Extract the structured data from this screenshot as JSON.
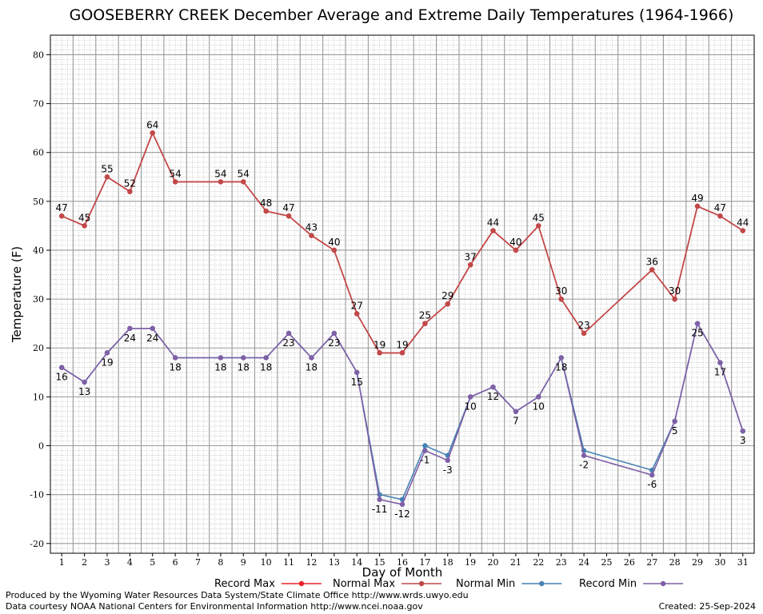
{
  "chart_data": {
    "type": "line",
    "title": "GOOSEBERRY CREEK December Average and Extreme Daily Temperatures (1964-1966)",
    "xlabel": "Day of Month",
    "ylabel": "Temperature (F)",
    "xlim": [
      0.5,
      31.5
    ],
    "ylim": [
      -22,
      84
    ],
    "y_ticks": [
      -20,
      -10,
      0,
      10,
      20,
      30,
      40,
      50,
      60,
      70,
      80
    ],
    "x": [
      1,
      2,
      3,
      4,
      5,
      6,
      7,
      8,
      9,
      10,
      11,
      12,
      13,
      14,
      15,
      16,
      17,
      18,
      19,
      20,
      21,
      22,
      23,
      24,
      25,
      26,
      27,
      28,
      29,
      30,
      31
    ],
    "grid": true,
    "legend_position": "bottom",
    "series": [
      {
        "name": "Record Max",
        "color": "#e8202a",
        "values": [
          47,
          45,
          55,
          52,
          64,
          54,
          null,
          54,
          54,
          48,
          47,
          43,
          40,
          27,
          19,
          19,
          25,
          29,
          37,
          44,
          40,
          45,
          30,
          23,
          null,
          null,
          36,
          30,
          49,
          47,
          44
        ]
      },
      {
        "name": "Normal Max",
        "color": "#c04848",
        "values": [
          47,
          45,
          55,
          52,
          64,
          54,
          null,
          54,
          54,
          48,
          47,
          43,
          40,
          27,
          19,
          19,
          25,
          29,
          37,
          44,
          40,
          45,
          30,
          23,
          null,
          null,
          36,
          30,
          49,
          47,
          44
        ]
      },
      {
        "name": "Normal Min",
        "color": "#4682b4",
        "values": [
          16,
          13,
          19,
          24,
          24,
          18,
          null,
          18,
          18,
          18,
          23,
          18,
          23,
          15,
          -10,
          -11,
          0,
          -2,
          10,
          12,
          7,
          10,
          18,
          -1,
          null,
          null,
          -5,
          5,
          25,
          17,
          3
        ]
      },
      {
        "name": "Record Min",
        "color": "#7f5fa6",
        "values": [
          16,
          13,
          19,
          24,
          24,
          18,
          null,
          18,
          18,
          18,
          23,
          18,
          23,
          15,
          -11,
          -12,
          -1,
          -3,
          10,
          12,
          7,
          10,
          18,
          -2,
          null,
          null,
          -6,
          5,
          25,
          17,
          3
        ]
      }
    ]
  },
  "footer": {
    "line1": "Produced by the Wyoming Water Resources Data System/State Climate Office http://www.wrds.uwyo.edu",
    "line2": "Data courtesy NOAA National Centers for Environmental Information http://www.ncei.noaa.gov",
    "created": "Created:  25-Sep-2024"
  }
}
